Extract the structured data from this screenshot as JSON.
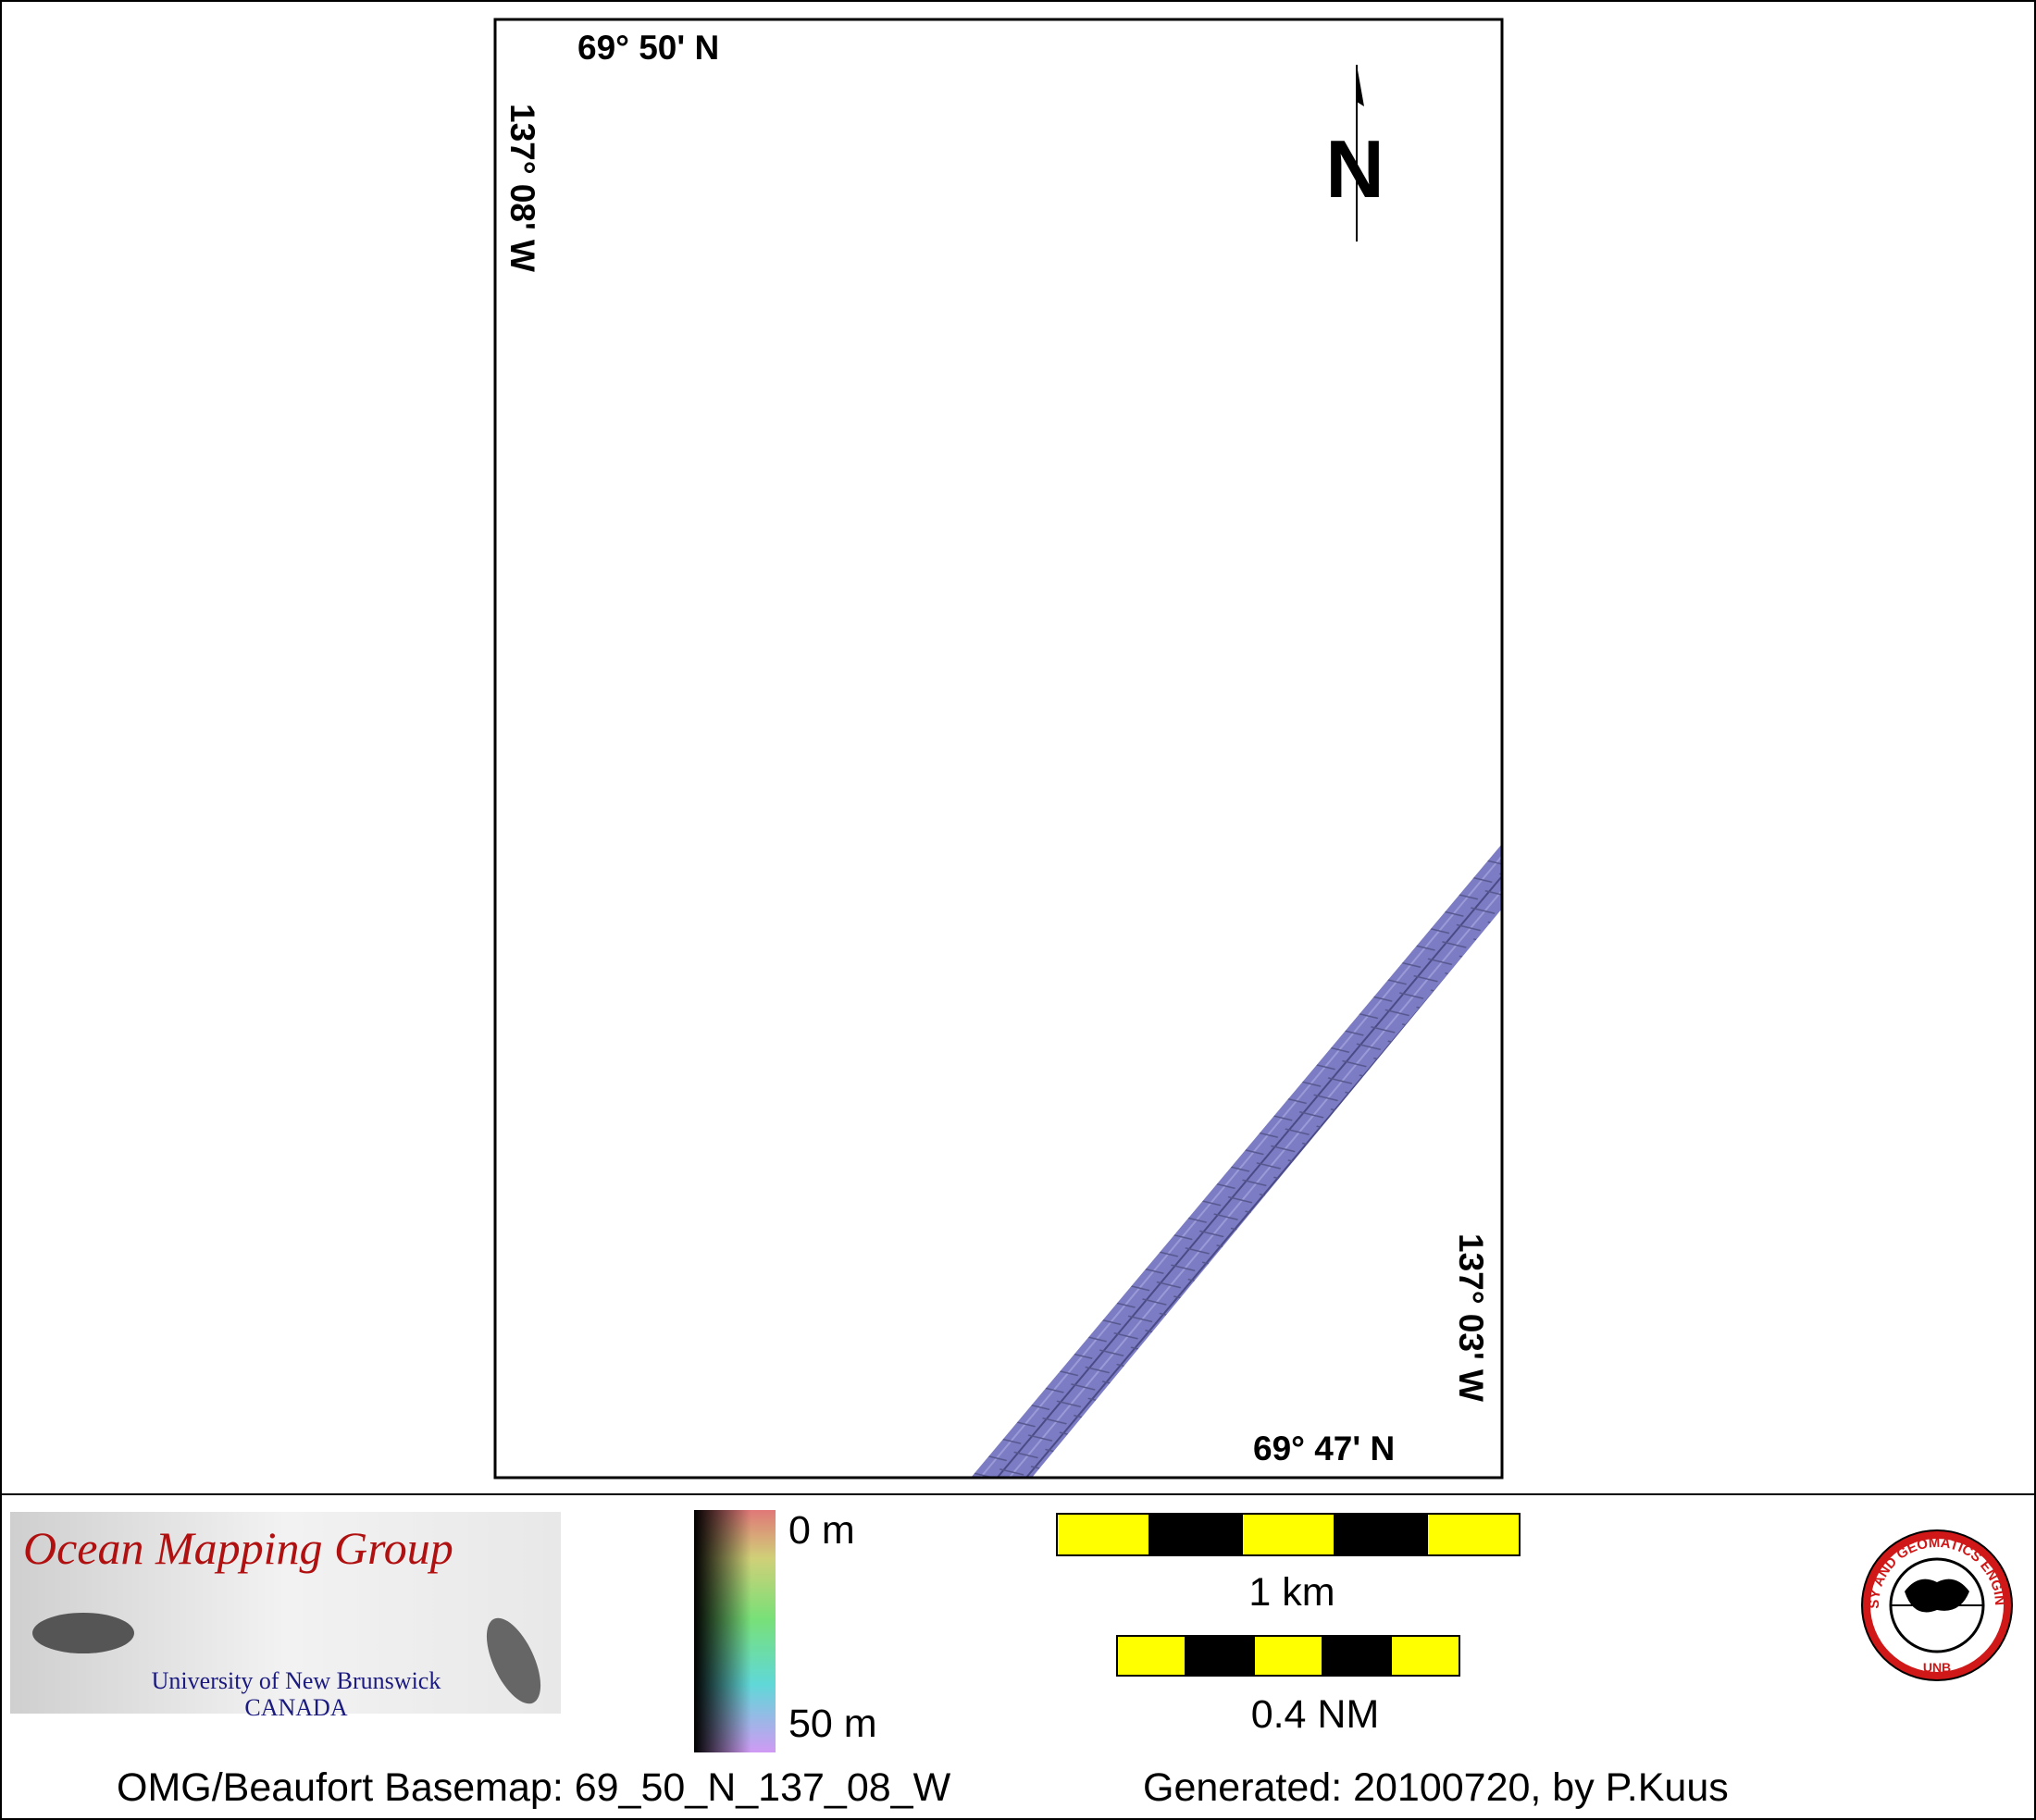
{
  "map": {
    "labels": {
      "top_lat": "69° 50' N",
      "left_lon": "137° 08' W",
      "right_lon": "137° 03' W",
      "bottom_lat": "69° 47' N",
      "north": "N"
    }
  },
  "legend": {
    "logo": {
      "title": "Ocean Mapping Group",
      "university": "University of New Brunswick",
      "country": "CANADA"
    },
    "colorbar": {
      "top": "0 m",
      "bottom": "50 m"
    },
    "scale_bars": [
      "1 km",
      "0.4 NM"
    ],
    "badge": {
      "ring": "GEODESY AND GEOMATICS ENGINEERING",
      "center": "UNB"
    }
  },
  "footer": {
    "basemap": "OMG/Beaufort Basemap: 69_50_N_137_08_W",
    "generated": "Generated: 20100720, by P.Kuus"
  }
}
